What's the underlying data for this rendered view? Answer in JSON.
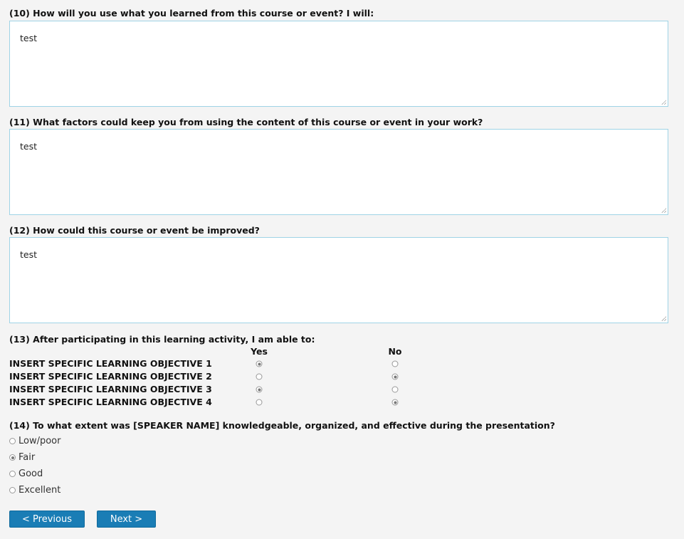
{
  "questions_text": [
    {
      "label": "(10) How will you use what you learned from this course or event? I will:",
      "value": "test"
    },
    {
      "label": "(11) What factors could keep you from using the content of this course or event in your work?",
      "value": "test"
    },
    {
      "label": "(12) How could this course or event be improved?",
      "value": "test"
    }
  ],
  "q13": {
    "label": "(13) After participating in this learning activity, I am able to:",
    "col_yes": "Yes",
    "col_no": "No",
    "rows": [
      {
        "label": "INSERT SPECIFIC LEARNING OBJECTIVE 1",
        "selected": "Yes"
      },
      {
        "label": "INSERT SPECIFIC LEARNING OBJECTIVE 2",
        "selected": "No"
      },
      {
        "label": "INSERT SPECIFIC LEARNING OBJECTIVE 3",
        "selected": "Yes"
      },
      {
        "label": "INSERT SPECIFIC LEARNING OBJECTIVE 4",
        "selected": "No"
      }
    ]
  },
  "q14": {
    "label": "(14) To what extent was [SPEAKER NAME] knowledgeable, organized, and effective during the presentation?",
    "options": [
      "Low/poor",
      "Fair",
      "Good",
      "Excellent"
    ],
    "selected": "Fair"
  },
  "nav": {
    "previous": "< Previous",
    "next": "Next >"
  },
  "colors": {
    "button": "#1a7db5",
    "textarea_border": "#9fd3e6"
  }
}
